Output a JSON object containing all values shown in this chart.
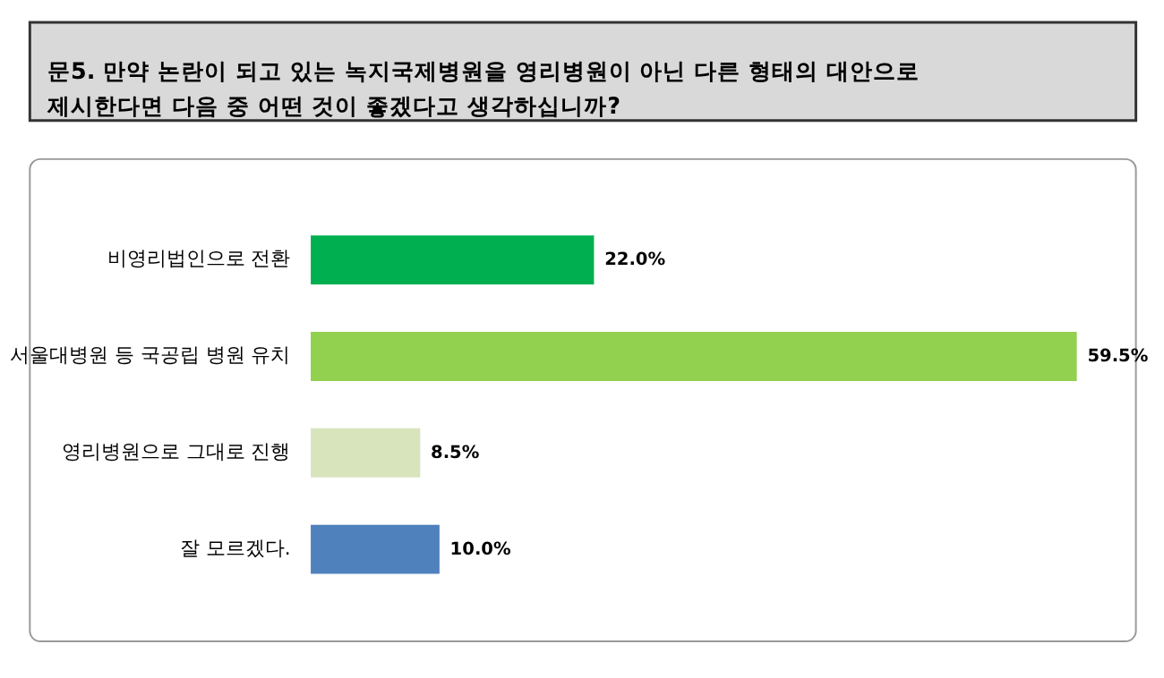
{
  "chart_data": {
    "type": "bar",
    "orientation": "horizontal",
    "title": "문5. 만약 논란이 되고 있는 녹지국제병원을 영리병원이 아닌 다른 형태의 대안으로 제시한다면 다음 중 어떤 것이 좋겠다고 생각하십니까?",
    "categories": [
      "비영리법인으로 전환",
      "서울대병원 등 국공립 병원 유치",
      "영리병원으로 그대로 진행",
      "잘 모르겠다."
    ],
    "values": [
      22.0,
      59.5,
      8.5,
      10.0
    ],
    "colors": [
      "#00b050",
      "#92d050",
      "#d8e4bc",
      "#4f81bd"
    ],
    "value_labels": [
      "22.0%",
      "59.5%",
      "8.5%",
      "10.0%"
    ],
    "grid": false
  }
}
